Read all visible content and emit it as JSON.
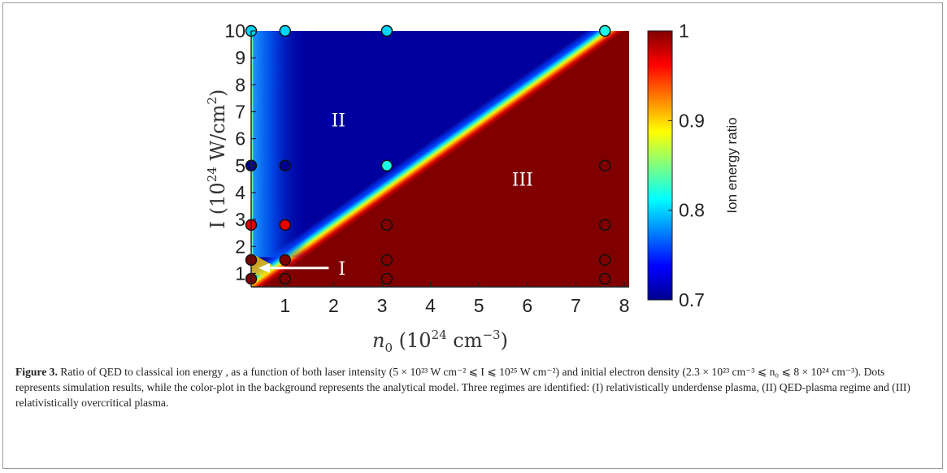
{
  "chart_data": {
    "type": "heatmap",
    "xlabel_main": "n",
    "xlabel_sub": "0",
    "xlabel_rest": " (10",
    "xlabel_exp": "24",
    "xlabel_unit": " cm",
    "xlabel_unit_exp": "−3",
    "xlabel_close": ")",
    "ylabel_main": "I (10",
    "ylabel_exp": "24",
    "ylabel_unit": " W/cm",
    "ylabel_unit_exp": "2",
    "ylabel_close": ")",
    "xlim": [
      0.3,
      8.1
    ],
    "ylim": [
      0.5,
      10
    ],
    "xticks": [
      "1",
      "2",
      "3",
      "4",
      "5",
      "6",
      "7",
      "8"
    ],
    "yticks": [
      "1",
      "2",
      "3",
      "4",
      "5",
      "6",
      "7",
      "8",
      "9",
      "10"
    ],
    "colorbar": {
      "label": "Ion energy ratio",
      "min": 0.7,
      "max": 1.0,
      "ticks": [
        "0.7",
        "0.8",
        "0.9",
        "1"
      ]
    },
    "regime_labels": [
      {
        "text": "I",
        "x": 2.0,
        "y": 1.2
      },
      {
        "text": "II",
        "x": 2.1,
        "y": 6.7
      },
      {
        "text": "III",
        "x": 5.9,
        "y": 4.5
      }
    ],
    "arrow": {
      "from": [
        1.9,
        1.2
      ],
      "to": [
        0.45,
        1.2
      ]
    },
    "points": [
      {
        "x": 0.3,
        "y": 10,
        "v": 0.8
      },
      {
        "x": 1.0,
        "y": 10,
        "v": 0.8
      },
      {
        "x": 3.1,
        "y": 10,
        "v": 0.8
      },
      {
        "x": 7.6,
        "y": 10,
        "v": 0.82
      },
      {
        "x": 0.3,
        "y": 5,
        "v": 0.7
      },
      {
        "x": 1.0,
        "y": 5,
        "v": 0.7
      },
      {
        "x": 3.1,
        "y": 5,
        "v": 0.82
      },
      {
        "x": 7.6,
        "y": 5,
        "v": 1.0
      },
      {
        "x": 0.3,
        "y": 2.8,
        "v": 0.97
      },
      {
        "x": 1.0,
        "y": 2.8,
        "v": 0.97
      },
      {
        "x": 3.1,
        "y": 2.8,
        "v": 1.0
      },
      {
        "x": 7.6,
        "y": 2.8,
        "v": 1.0
      },
      {
        "x": 0.3,
        "y": 1.5,
        "v": 1.0
      },
      {
        "x": 1.0,
        "y": 1.5,
        "v": 1.0
      },
      {
        "x": 3.1,
        "y": 1.5,
        "v": 1.0
      },
      {
        "x": 7.6,
        "y": 1.5,
        "v": 1.0
      },
      {
        "x": 0.3,
        "y": 0.8,
        "v": 1.0
      },
      {
        "x": 1.0,
        "y": 0.8,
        "v": 1.0
      },
      {
        "x": 3.1,
        "y": 0.8,
        "v": 1.0
      },
      {
        "x": 7.6,
        "y": 0.8,
        "v": 1.0
      }
    ]
  },
  "caption": {
    "label": "Figure 3.",
    "text": " Ratio of QED to classical ion energy , as a function of both laser intensity (5 × 10²³ W cm⁻² ⩽ I ⩽ 10²⁵ W cm⁻²) and initial electron density (2.3 × 10²³ cm⁻³ ⩽ n₀ ⩽ 8 × 10²⁴ cm⁻³). Dots represents simulation results, while the color-plot in the background represents the analytical model. Three regimes are identified: (I) relativistically underdense plasma, (II) QED-plasma regime and (III) relativistically overcritical plasma."
  }
}
